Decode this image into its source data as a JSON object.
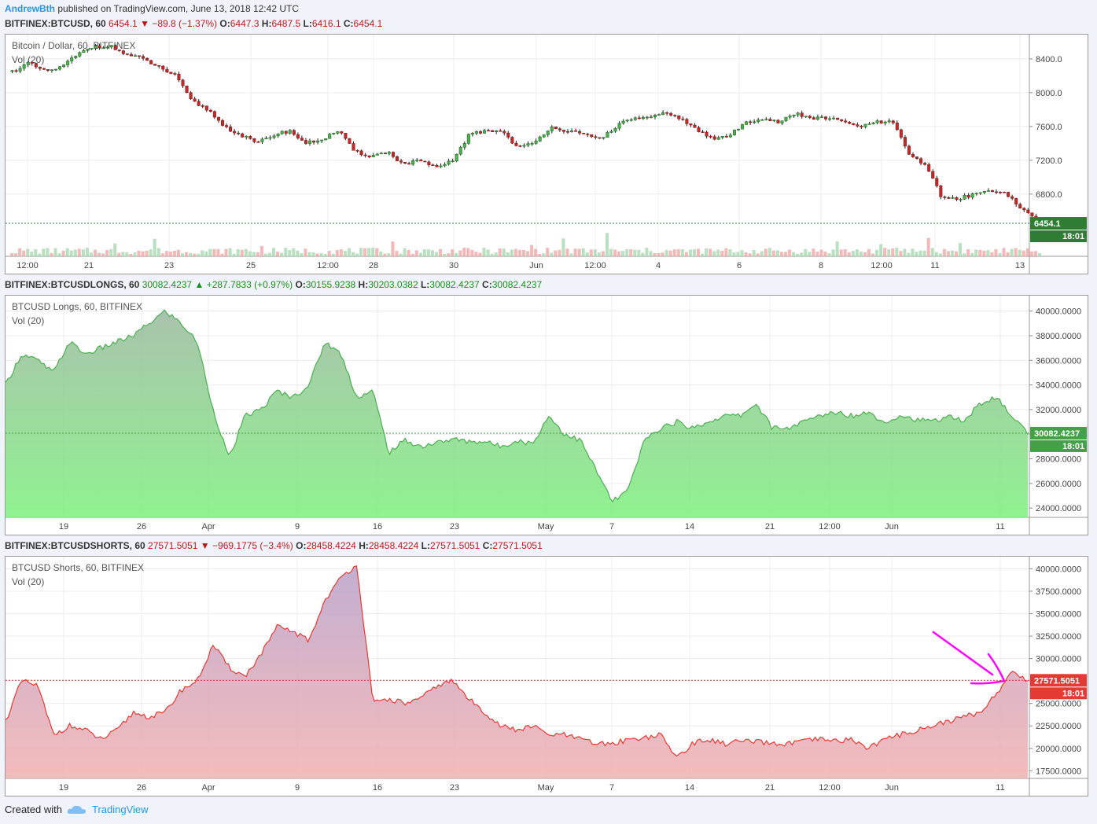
{
  "header": {
    "user": "AndrewBth",
    "published": "published on TradingView.com, June 13, 2018 12:42 UTC"
  },
  "panels": [
    {
      "symbol": "BITFINEX:BTCUSD, 60",
      "last": "6454.1",
      "change": "−89.8 (−1.37%)",
      "direction": "down",
      "o": "6447.3",
      "h": "6487.5",
      "l": "6416.1",
      "c": "6454.1",
      "title": "Bitcoin / Dollar, 60, BITFINEX",
      "vol": "Vol (20)",
      "price_label": "6454.1",
      "countdown": "18:01",
      "x_ticks": [
        "12:00",
        "21",
        "23",
        "25",
        "12:00",
        "28",
        "30",
        "Jun",
        "12:00",
        "4",
        "6",
        "8",
        "12:00",
        "11",
        "13"
      ],
      "y_ticks": [
        "8400.0",
        "8000.0",
        "7600.0",
        "7200.0",
        "6800.0"
      ]
    },
    {
      "symbol": "BITFINEX:BTCUSDLONGS, 60",
      "last": "30082.4237",
      "change": "+287.7833 (+0.97%)",
      "direction": "up",
      "o": "30155.9238",
      "h": "30203.0382",
      "l": "30082.4237",
      "c": "30082.4237",
      "title": "BTCUSD Longs, 60, BITFINEX",
      "vol": "Vol (20)",
      "price_label": "30082.4237",
      "countdown": "18:01",
      "x_ticks": [
        "19",
        "26",
        "Apr",
        "9",
        "16",
        "23",
        "May",
        "7",
        "14",
        "21",
        "12:00",
        "Jun",
        "11"
      ],
      "y_ticks": [
        "40000.0000",
        "38000.0000",
        "36000.0000",
        "34000.0000",
        "32000.0000",
        "30000.0000",
        "28000.0000",
        "26000.0000",
        "24000.0000"
      ]
    },
    {
      "symbol": "BITFINEX:BTCUSDSHORTS, 60",
      "last": "27571.5051",
      "change": "−969.1775 (−3.4%)",
      "direction": "down",
      "o": "28458.4224",
      "h": "28458.4224",
      "l": "27571.5051",
      "c": "27571.5051",
      "title": "BTCUSD Shorts, 60, BITFINEX",
      "vol": "Vol (20)",
      "price_label": "27571.5051",
      "countdown": "18:01",
      "x_ticks": [
        "19",
        "26",
        "Apr",
        "9",
        "16",
        "23",
        "May",
        "7",
        "14",
        "21",
        "12:00",
        "Jun",
        "11"
      ],
      "y_ticks": [
        "40000.0000",
        "37500.0000",
        "35000.0000",
        "32500.0000",
        "30000.0000",
        "27500.0000",
        "25000.0000",
        "22500.0000",
        "20000.0000",
        "17500.0000"
      ]
    }
  ],
  "footer": {
    "created": "Created with",
    "brand": "TradingView"
  },
  "colors": {
    "up": "#1b8f1b",
    "down": "#b71c1c",
    "longs": "#4caf50",
    "shorts": "#e53935",
    "annotation": "#ff00ff",
    "brand": "#2196f3"
  },
  "chart_data": [
    {
      "type": "candlestick",
      "title": "Bitcoin / Dollar, 60, BITFINEX",
      "x_ticks": [
        "12:00",
        "21",
        "23",
        "25",
        "12:00",
        "28",
        "30",
        "Jun",
        "12:00",
        "4",
        "6",
        "8",
        "12:00",
        "11",
        "13"
      ],
      "close_approx": [
        8250,
        8350,
        8250,
        8300,
        8450,
        8550,
        8550,
        8450,
        8400,
        8300,
        8200,
        7900,
        7800,
        7600,
        7500,
        7400,
        7500,
        7550,
        7400,
        7450,
        7550,
        7300,
        7250,
        7300,
        7150,
        7200,
        7100,
        7200,
        7500,
        7550,
        7550,
        7350,
        7400,
        7600,
        7550,
        7500,
        7450,
        7600,
        7700,
        7700,
        7750,
        7700,
        7550,
        7450,
        7500,
        7650,
        7700,
        7650,
        7750,
        7700,
        7700,
        7650,
        7600,
        7650,
        7650,
        7250,
        7150,
        6750,
        6750,
        6800,
        6850,
        6800,
        6600,
        6454.1
      ],
      "ylim": [
        6250,
        8650
      ],
      "last": 6454.1
    },
    {
      "type": "area",
      "title": "BTCUSD Longs, 60, BITFINEX",
      "x_ticks": [
        "19",
        "26",
        "Apr",
        "9",
        "16",
        "23",
        "May",
        "7",
        "14",
        "21",
        "12:00",
        "Jun",
        "11"
      ],
      "values": [
        34000,
        36500,
        36000,
        35000,
        37500,
        36500,
        37000,
        37500,
        38000,
        39000,
        40000,
        39000,
        37500,
        32000,
        28000,
        31500,
        32000,
        33500,
        33000,
        34000,
        37500,
        36500,
        33000,
        33500,
        28500,
        29500,
        29000,
        29300,
        29600,
        29400,
        29400,
        29000,
        29500,
        29200,
        31500,
        30000,
        29500,
        27000,
        24500,
        25500,
        29500,
        30500,
        31000,
        30500,
        31000,
        31500,
        31500,
        32500,
        30500,
        30500,
        31000,
        31500,
        31800,
        31500,
        31800,
        31000,
        31500,
        31200,
        31000,
        31500,
        31000,
        32500,
        33000,
        31500,
        30082.4237
      ],
      "ylim": [
        23500,
        41000
      ],
      "last": 30082.4237
    },
    {
      "type": "area",
      "title": "BTCUSD Shorts, 60, BITFINEX",
      "x_ticks": [
        "19",
        "26",
        "Apr",
        "9",
        "16",
        "23",
        "May",
        "7",
        "14",
        "21",
        "12:00",
        "Jun",
        "11"
      ],
      "values": [
        23000,
        27500,
        27000,
        21500,
        22500,
        22000,
        21000,
        22000,
        24000,
        23500,
        24000,
        26500,
        27500,
        31500,
        29000,
        28000,
        30500,
        33500,
        33000,
        32000,
        36500,
        39000,
        40500,
        25000,
        25500,
        25000,
        25500,
        27000,
        27500,
        25500,
        24000,
        22500,
        22000,
        22500,
        21500,
        21500,
        21000,
        20500,
        20500,
        21000,
        21200,
        21500,
        19000,
        20500,
        21000,
        20500,
        20800,
        20700,
        20500,
        20500,
        20800,
        21000,
        20800,
        21000,
        20000,
        21000,
        21500,
        22000,
        22500,
        23000,
        23500,
        24000,
        26000,
        28500,
        27571.5051
      ],
      "ylim": [
        17000,
        41000
      ],
      "last": 27571.5051
    }
  ]
}
